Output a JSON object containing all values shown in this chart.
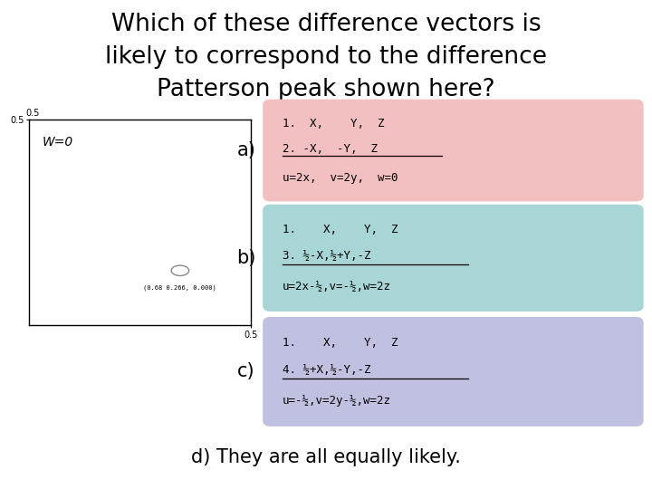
{
  "title_line1": "Which of these difference vectors is",
  "title_line2": "likely to correspond to the difference",
  "title_line3": "Patterson peak shown here?",
  "title_fontsize": 19,
  "bg_color": "#ffffff",
  "box_a_color": "#f2c0c0",
  "box_b_color": "#a8d5d5",
  "box_c_color": "#c0c0e0",
  "box_a_line1": "1.  X,    Y,  Z",
  "box_a_line2": "2. -X,  -Y,  Z",
  "box_a_line3": "u=2x,  v=2y,  w=0",
  "box_b_line1": "1.    X,    Y,  Z",
  "box_b_line2": "3. ½-X,½+Y,-Z",
  "box_b_line3": "u=2x-½,v=-½,w=2z",
  "box_c_line1": "1.    X,    Y,  Z",
  "box_c_line2": "4. ½+X,½-Y,-Z",
  "box_c_line3": "u=-½,v=2y-½,w=2z",
  "label_a": "a)",
  "label_b": "b)",
  "label_c": "c)",
  "label_d": "d) They are all equally likely.",
  "panel_label": "W=0",
  "panel_coord": "(0.68 0.266, 0.000)",
  "mono_fontsize": 9,
  "label_fontsize": 15
}
